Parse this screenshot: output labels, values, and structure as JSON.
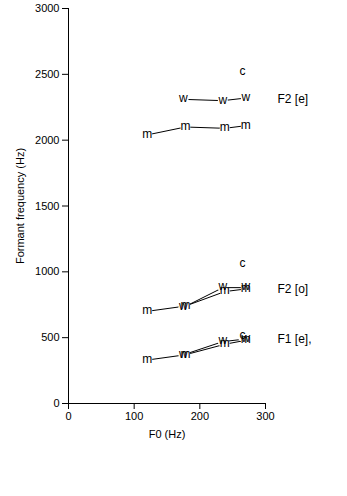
{
  "chart_data": {
    "type": "line",
    "x_label": "F0 (Hz)",
    "y_label": "Formant frequency (Hz)",
    "xlim": [
      0,
      300
    ],
    "xticks": [
      0,
      100,
      200,
      300
    ],
    "ylim": [
      0,
      3000
    ],
    "yticks": [
      0,
      500,
      1000,
      1500,
      2000,
      2500,
      3000
    ],
    "grid": false,
    "series": [
      {
        "name": "m",
        "color": "#000000",
        "marker": "text",
        "line_style": "solid",
        "x": [
          120,
          178,
          238,
          270,
          null,
          120,
          178,
          238,
          270,
          null,
          120,
          178,
          238,
          270
        ],
        "values": [
          2040,
          2100,
          2090,
          2110,
          null,
          700,
          740,
          850,
          870,
          null,
          330,
          370,
          450,
          480
        ]
      },
      {
        "name": "w",
        "color": "#000000",
        "marker": "text",
        "line_style": "solid",
        "x": [
          175,
          235,
          270,
          null,
          175,
          235,
          270,
          null,
          175,
          235,
          270
        ],
        "values": [
          2310,
          2300,
          2320,
          null,
          730,
          880,
          880,
          null,
          370,
          470,
          490
        ]
      },
      {
        "name": "c",
        "color": "#000000",
        "marker": "text",
        "line_style": "solid",
        "x": [
          265,
          null,
          265,
          null,
          265
        ],
        "values": [
          2520,
          null,
          1060,
          null,
          510
        ]
      }
    ],
    "annotations": [
      {
        "text": "F2 [e]",
        "y": 2310
      },
      {
        "text": "F2 [o]",
        "y": 870
      },
      {
        "text": "F1 [e],",
        "y": 490
      }
    ]
  }
}
